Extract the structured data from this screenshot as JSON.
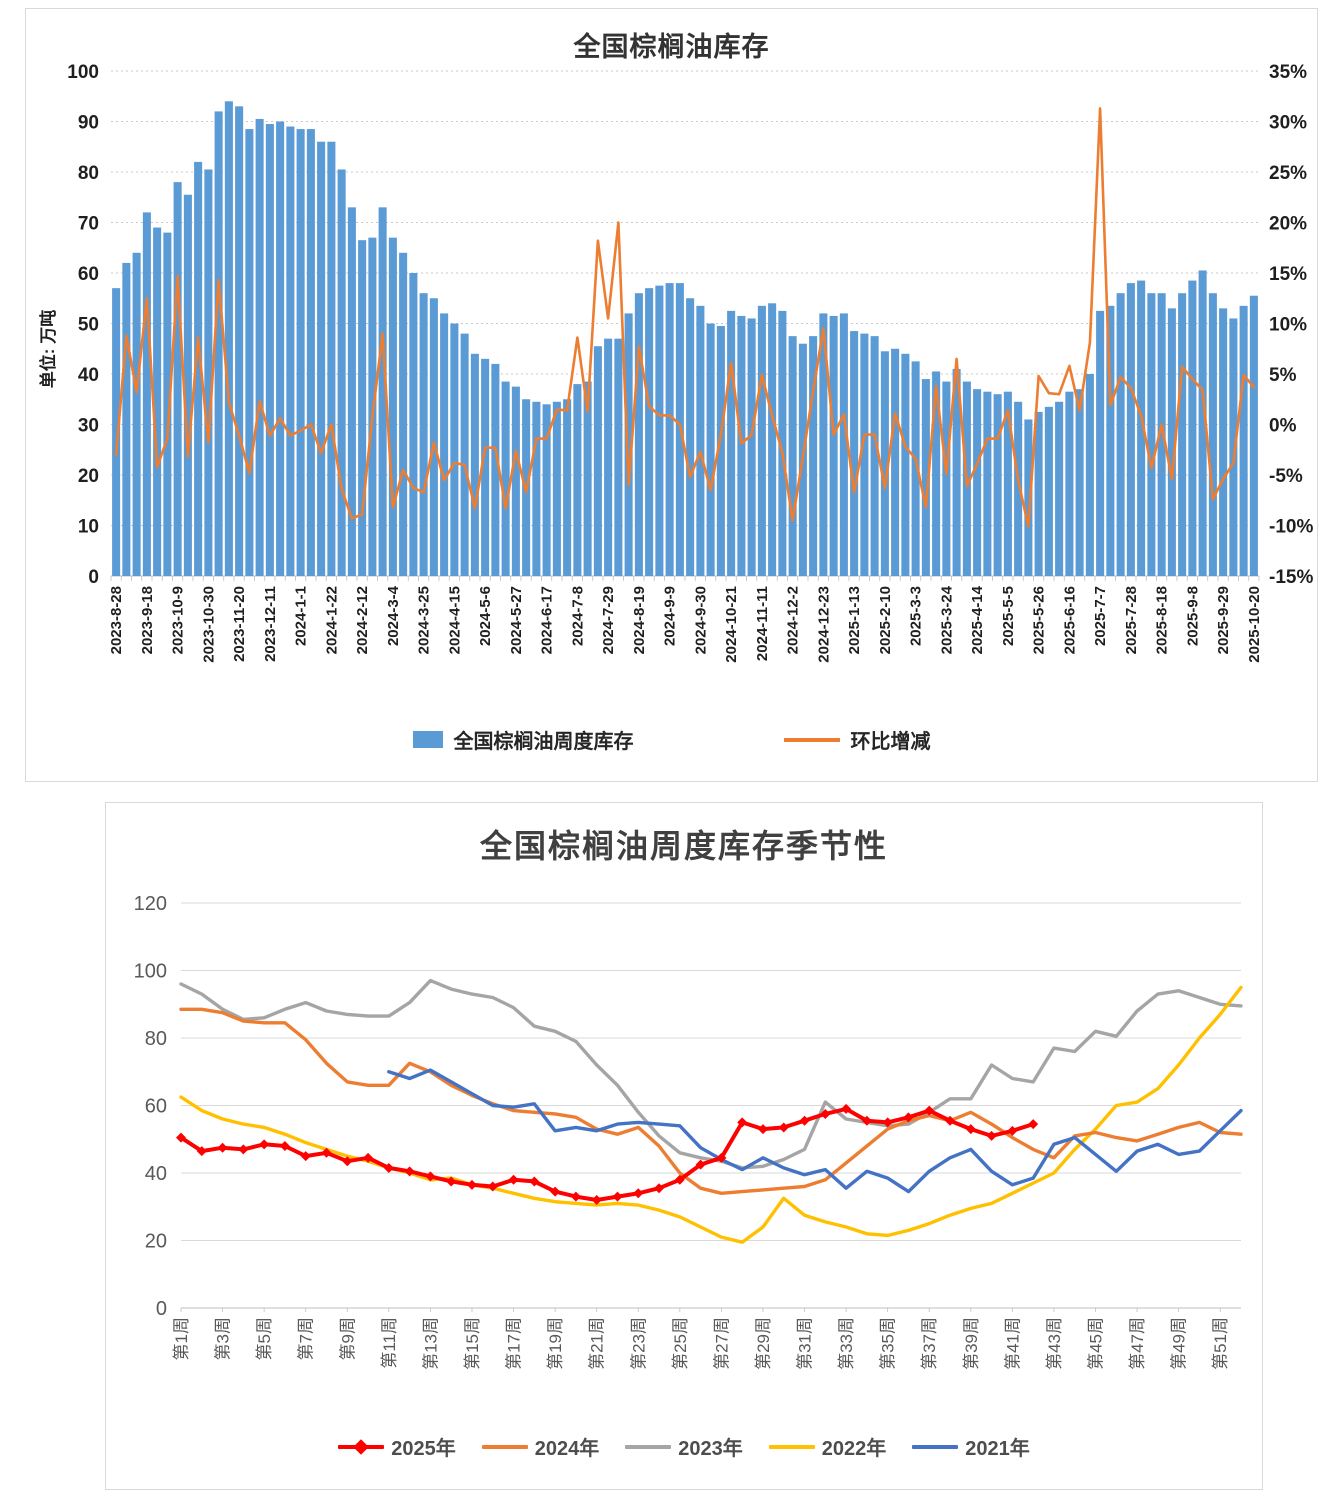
{
  "page": {
    "background": "#ffffff"
  },
  "chart_data": [
    {
      "type": "bar",
      "subtype": "bar+line-combo",
      "title": "全国棕榈油库存",
      "y_axis_label": "单位: 万吨",
      "grid": "dotted",
      "legend_position": "bottom",
      "left_axis": {
        "min": 0,
        "max": 100,
        "ticks": [
          100,
          90,
          80,
          70,
          60,
          50,
          40,
          30,
          20,
          10,
          0
        ]
      },
      "right_axis": {
        "min": -15,
        "max": 35,
        "unit": "%",
        "ticks": [
          35,
          30,
          25,
          20,
          15,
          10,
          5,
          0,
          -5,
          -10,
          -15
        ]
      },
      "x_label_interval": 3,
      "x_labels": [
        "2023-8-28",
        "2023-9-18",
        "2023-10-9",
        "2023-10-30",
        "2023-11-20",
        "2023-12-11",
        "2024-1-1",
        "2024-1-22",
        "2024-2-12",
        "2024-3-4",
        "2024-3-25",
        "2024-4-15",
        "2024-5-6",
        "2024-5-27",
        "2024-6-17",
        "2024-7-8",
        "2024-7-29",
        "2024-8-19",
        "2024-9-9",
        "2024-9-30",
        "2024-10-21",
        "2024-11-11",
        "2024-12-2",
        "2024-12-23",
        "2025-1-13",
        "2025-2-10",
        "2025-3-3",
        "2025-3-24",
        "2025-4-14",
        "2025-5-5",
        "2025-5-26",
        "2025-6-16",
        "2025-7-7",
        "2025-7-28",
        "2025-8-18",
        "2025-9-8",
        "2025-9-29",
        "2025-10-20"
      ],
      "series": [
        {
          "name": "全国棕榈油周度库存",
          "type": "bar",
          "axis": "left",
          "color": "#5B9BD5",
          "values": [
            57,
            62,
            64,
            72,
            69,
            68,
            78,
            75.5,
            82,
            80.5,
            92,
            94,
            93,
            88.5,
            90.5,
            89.5,
            90,
            89,
            88.5,
            88.5,
            86,
            86,
            80.5,
            73,
            66.5,
            67,
            73,
            67,
            64,
            60,
            56,
            55,
            52,
            50,
            48,
            44,
            43,
            42,
            38.5,
            37.5,
            35,
            34.5,
            34,
            34.5,
            35,
            38,
            38.5,
            45.5,
            47,
            47,
            52,
            56,
            57,
            57.5,
            58,
            58,
            55,
            53.5,
            50,
            49.5,
            52.5,
            51.5,
            51,
            53.5,
            54,
            52.5,
            47.5,
            46,
            47.5,
            52,
            51.5,
            52,
            48.5,
            48,
            47.5,
            44.5,
            45,
            44,
            42.5,
            39,
            40.5,
            38.5,
            41,
            38.5,
            37,
            36.5,
            36,
            36.5,
            34.5,
            31,
            32.5,
            33.5,
            34.5,
            36.5,
            37,
            40,
            52.5,
            53.5,
            56,
            58,
            58.5,
            56,
            56,
            53,
            56,
            58.5,
            60.5,
            56,
            53,
            51,
            53.5,
            55.5
          ]
        },
        {
          "name": "环比增减",
          "type": "line",
          "axis": "right",
          "color": "#ED7D31",
          "values": [
            -3,
            8.8,
            3.2,
            12.5,
            -4.2,
            -1.4,
            14.7,
            -3.2,
            8.6,
            -1.8,
            14.3,
            2.2,
            -1.1,
            -4.8,
            2.3,
            -1.1,
            0.6,
            -1.1,
            -0.6,
            0,
            -2.8,
            0,
            -6.4,
            -9.3,
            -8.9,
            0.8,
            9,
            -8.2,
            -4.5,
            -6.3,
            -6.7,
            -1.8,
            -5.5,
            -3.8,
            -4,
            -8.3,
            -2.3,
            -2.3,
            -8.3,
            -2.6,
            -6.7,
            -1.4,
            -1.4,
            1.5,
            1.4,
            8.6,
            1.3,
            18.2,
            10.5,
            20,
            -6,
            7.7,
            1.8,
            0.9,
            0.9,
            0,
            -5.2,
            -2.7,
            -6.5,
            -1,
            6.1,
            -1.9,
            -1,
            4.9,
            0.9,
            -2.8,
            -9.5,
            -3.2,
            3.3,
            9.5,
            -1,
            1,
            -6.7,
            -1,
            -1,
            -6.3,
            1.1,
            -2.2,
            -3.4,
            -8.2,
            3.8,
            -4.9,
            6.5,
            -6.1,
            -3.9,
            -1.4,
            -1.4,
            1.4,
            -5.5,
            -10.1,
            4.8,
            3.1,
            3,
            5.8,
            1.4,
            8.1,
            31.3,
            1.9,
            4.7,
            3.6,
            0.9,
            -4.3,
            0,
            -5.4,
            5.7,
            4.5,
            3.4,
            -7.4,
            -5.4,
            -3.8,
            4.9,
            3.7
          ]
        }
      ]
    },
    {
      "type": "line",
      "title": "全国棕榈油周度库存季节性",
      "grid": "solid",
      "legend_position": "bottom",
      "n_points": 52,
      "y_axis": {
        "min": 0,
        "max": 120,
        "ticks": [
          120,
          100,
          80,
          60,
          40,
          20,
          0
        ]
      },
      "x_label_interval": 2,
      "x_labels": [
        "第1周",
        "第3周",
        "第5周",
        "第7周",
        "第9周",
        "第11周",
        "第13周",
        "第15周",
        "第17周",
        "第19周",
        "第21周",
        "第23周",
        "第25周",
        "第27周",
        "第29周",
        "第31周",
        "第33周",
        "第35周",
        "第37周",
        "第39周",
        "第41周",
        "第43周",
        "第45周",
        "第47周",
        "第49周",
        "第51周"
      ],
      "series": [
        {
          "name": "2025年",
          "color": "#FF0000",
          "marker": "diamond",
          "values": [
            50.5,
            46.5,
            47.5,
            47,
            48.5,
            48,
            45,
            46,
            43.5,
            44.5,
            41.5,
            40.5,
            39,
            37.5,
            36.5,
            36,
            38,
            37.5,
            34.5,
            33,
            32,
            33,
            34,
            35.5,
            38,
            42.5,
            44.5,
            55,
            53,
            53.5,
            55.5,
            57.5,
            59,
            55.5,
            55,
            56.5,
            58.5,
            55.5,
            53,
            51,
            52.5,
            54.5
          ]
        },
        {
          "name": "2024年",
          "color": "#ED7D31",
          "values": [
            88.5,
            88.5,
            87.5,
            85,
            84.5,
            84.5,
            79.5,
            72.5,
            67,
            66,
            66,
            72.5,
            70,
            66,
            63,
            60.5,
            58.5,
            58,
            57.5,
            56.5,
            53,
            51.5,
            53.5,
            48,
            40,
            35.5,
            34,
            34.5,
            35,
            35.5,
            36,
            38,
            43,
            48,
            53,
            55.5,
            57,
            55.5,
            58,
            54.5,
            50.5,
            47,
            44.5,
            51,
            52,
            50.5,
            49.5,
            51.5,
            53.5,
            55,
            52,
            51.5
          ]
        },
        {
          "name": "2023年",
          "color": "#A5A5A5",
          "values": [
            96,
            93,
            88.5,
            85.5,
            86,
            88.5,
            90.5,
            88,
            87,
            86.5,
            86.5,
            90.5,
            97,
            94.5,
            93,
            92,
            89,
            83.5,
            82,
            79,
            72,
            66,
            58,
            51,
            46,
            44.5,
            43.5,
            41.5,
            42,
            44,
            47,
            61,
            56,
            55,
            54,
            54.5,
            58,
            62,
            62,
            72,
            68,
            67,
            77,
            76,
            82,
            80.5,
            88,
            93,
            94,
            92,
            90,
            89.5
          ]
        },
        {
          "name": "2022年",
          "color": "#FFC000",
          "values": [
            62.5,
            58.5,
            56,
            54.5,
            53.5,
            51.5,
            49,
            47,
            45,
            43.5,
            41.5,
            40,
            38,
            38.5,
            36.5,
            35.5,
            34,
            32.5,
            31.5,
            31,
            30.5,
            31,
            30.5,
            29,
            27,
            24,
            21,
            19.5,
            24,
            32.5,
            27.5,
            25.5,
            24,
            22,
            21.5,
            23,
            25,
            27.5,
            29.5,
            31,
            34,
            37,
            40,
            47,
            53,
            60,
            61,
            65,
            72,
            80,
            87,
            95
          ]
        },
        {
          "name": "2021年",
          "color": "#4472C4",
          "values": [
            null,
            null,
            null,
            null,
            null,
            null,
            null,
            null,
            null,
            null,
            70,
            68,
            70.5,
            67,
            63.5,
            60,
            59.5,
            60.5,
            52.5,
            53.5,
            52.5,
            54.5,
            55,
            54.5,
            54,
            47.5,
            44,
            41,
            44.5,
            41.5,
            39.5,
            41,
            35.5,
            40.5,
            38.5,
            34.5,
            40.5,
            44.5,
            47,
            40.5,
            36.5,
            38.5,
            48.5,
            50.5,
            45.5,
            40.5,
            46.5,
            48.5,
            45.5,
            46.5,
            52.5,
            58.5
          ]
        }
      ]
    }
  ]
}
